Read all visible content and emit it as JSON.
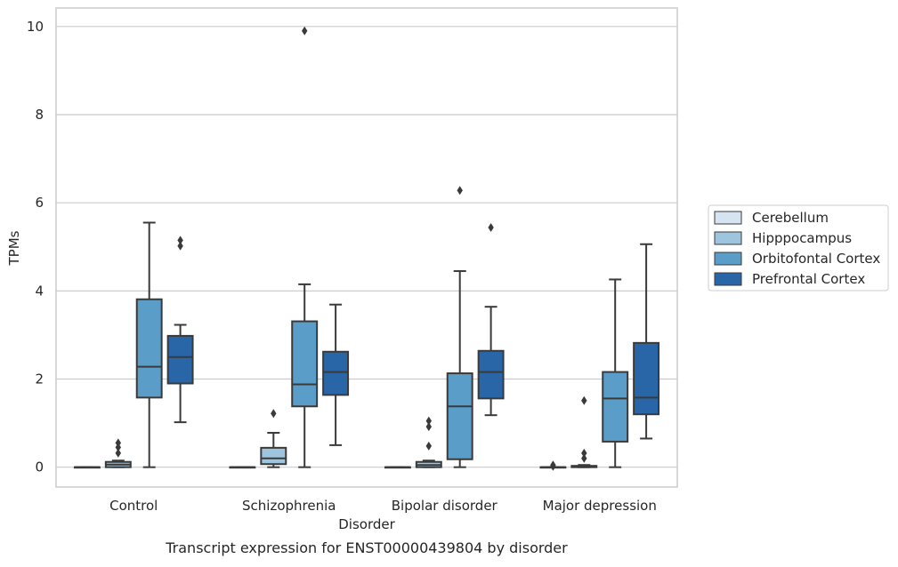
{
  "chart_data": {
    "type": "boxplot",
    "title": "",
    "caption": "Transcript expression for ENST00000439804 by disorder",
    "xlabel": "Disorder",
    "ylabel": "TPMs",
    "ylim": [
      -0.45,
      10.42
    ],
    "yticks": [
      0,
      2,
      4,
      6,
      8,
      10
    ],
    "grid": true,
    "legend_position": "right",
    "categories": [
      "Control",
      "Schizophrenia",
      "Bipolar disorder",
      "Major depression"
    ],
    "series": [
      {
        "name": "Cerebellum",
        "color": "#d6e3f0",
        "boxes": [
          {
            "whislo": 0,
            "q1": 0,
            "med": 0,
            "q3": 0,
            "whishi": 0,
            "fliers": []
          },
          {
            "whislo": 0,
            "q1": 0,
            "med": 0,
            "q3": 0,
            "whishi": 0,
            "fliers": []
          },
          {
            "whislo": 0,
            "q1": 0,
            "med": 0,
            "q3": 0,
            "whishi": 0,
            "fliers": []
          },
          {
            "whislo": 0,
            "q1": 0,
            "med": 0,
            "q3": 0,
            "whishi": 0,
            "fliers": [
              0.05,
              0.02
            ]
          }
        ]
      },
      {
        "name": "Hipppocampus",
        "color": "#9ec4de",
        "boxes": [
          {
            "whislo": 0,
            "q1": 0,
            "med": 0.06,
            "q3": 0.12,
            "whishi": 0.15,
            "fliers": [
              0.55,
              0.45,
              0.32
            ]
          },
          {
            "whislo": 0,
            "q1": 0.07,
            "med": 0.2,
            "q3": 0.44,
            "whishi": 0.78,
            "fliers": [
              1.22
            ]
          },
          {
            "whislo": 0,
            "q1": 0,
            "med": 0.05,
            "q3": 0.12,
            "whishi": 0.15,
            "fliers": [
              1.05,
              0.92,
              0.48
            ]
          },
          {
            "whislo": 0,
            "q1": 0,
            "med": 0.01,
            "q3": 0.03,
            "whishi": 0.05,
            "fliers": [
              1.51,
              0.32,
              0.2
            ]
          }
        ]
      },
      {
        "name": "Orbitofontal Cortex",
        "color": "#5b9dc9",
        "boxes": [
          {
            "whislo": 0,
            "q1": 1.58,
            "med": 2.28,
            "q3": 3.81,
            "whishi": 5.55,
            "fliers": []
          },
          {
            "whislo": 0,
            "q1": 1.38,
            "med": 1.88,
            "q3": 3.31,
            "whishi": 4.15,
            "fliers": [
              9.9
            ]
          },
          {
            "whislo": 0,
            "q1": 0.18,
            "med": 1.38,
            "q3": 2.13,
            "whishi": 4.45,
            "fliers": [
              6.28
            ]
          },
          {
            "whislo": 0,
            "q1": 0.58,
            "med": 1.56,
            "q3": 2.16,
            "whishi": 4.26,
            "fliers": []
          }
        ]
      },
      {
        "name": "Prefrontal Cortex",
        "color": "#2966a8",
        "boxes": [
          {
            "whislo": 1.02,
            "q1": 1.9,
            "med": 2.5,
            "q3": 2.98,
            "whishi": 3.23,
            "fliers": [
              5.15,
              5.02
            ]
          },
          {
            "whislo": 0.5,
            "q1": 1.64,
            "med": 2.16,
            "q3": 2.62,
            "whishi": 3.69,
            "fliers": []
          },
          {
            "whislo": 1.18,
            "q1": 1.56,
            "med": 2.16,
            "q3": 2.64,
            "whishi": 3.64,
            "fliers": [
              5.44
            ]
          },
          {
            "whislo": 0.65,
            "q1": 1.2,
            "med": 1.58,
            "q3": 2.82,
            "whishi": 5.06,
            "fliers": []
          }
        ]
      }
    ]
  }
}
